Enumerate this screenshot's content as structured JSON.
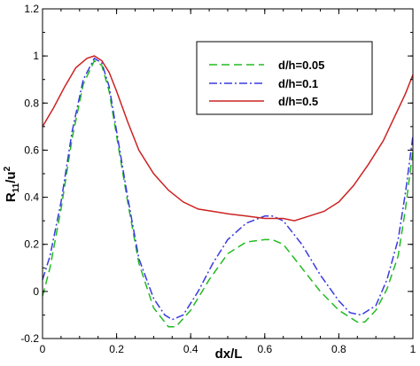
{
  "chart_data": {
    "type": "line",
    "title": "",
    "xlabel": "dx/L",
    "ylabel": "R11/u2",
    "ylabel_parts": {
      "base": "R",
      "sub": "11",
      "mid": "/u",
      "sup": "2"
    },
    "xlim": [
      0,
      1
    ],
    "ylim": [
      -0.2,
      1.2
    ],
    "xticks": [
      0,
      0.2,
      0.4,
      0.6,
      0.8,
      1
    ],
    "xtick_labels": [
      "0",
      "0.2",
      "0.4",
      "0.6",
      "0.8",
      "1"
    ],
    "yticks": [
      -0.2,
      0,
      0.2,
      0.4,
      0.6,
      0.8,
      1,
      1.2
    ],
    "ytick_labels": [
      "-0.2",
      "0",
      "0.2",
      "0.4",
      "0.6",
      "0.8",
      "1",
      "1.2"
    ],
    "grid": false,
    "legend_position": "top-right",
    "series": [
      {
        "name": "d/h=0.05",
        "color": "#22bb22",
        "dash": "dashed",
        "x": [
          0,
          0.02,
          0.05,
          0.08,
          0.11,
          0.14,
          0.16,
          0.18,
          0.2,
          0.23,
          0.26,
          0.3,
          0.34,
          0.36,
          0.4,
          0.45,
          0.5,
          0.55,
          0.6,
          0.62,
          0.65,
          0.7,
          0.75,
          0.8,
          0.85,
          0.87,
          0.9,
          0.93,
          0.96,
          0.98,
          1
        ],
        "y": [
          -0.02,
          0.1,
          0.35,
          0.65,
          0.88,
          0.98,
          0.96,
          0.85,
          0.66,
          0.38,
          0.12,
          -0.07,
          -0.15,
          -0.15,
          -0.08,
          0.05,
          0.16,
          0.21,
          0.22,
          0.22,
          0.2,
          0.1,
          0.0,
          -0.08,
          -0.13,
          -0.13,
          -0.08,
          0.01,
          0.15,
          0.35,
          0.6
        ]
      },
      {
        "name": "d/h=0.1",
        "color": "#3a3ae0",
        "dash": "dashdot",
        "x": [
          0,
          0.02,
          0.05,
          0.08,
          0.11,
          0.14,
          0.16,
          0.18,
          0.2,
          0.23,
          0.26,
          0.3,
          0.33,
          0.35,
          0.38,
          0.42,
          0.46,
          0.5,
          0.55,
          0.6,
          0.62,
          0.65,
          0.7,
          0.75,
          0.8,
          0.83,
          0.86,
          0.9,
          0.93,
          0.96,
          0.98,
          1
        ],
        "y": [
          0.05,
          0.15,
          0.38,
          0.68,
          0.9,
          0.99,
          0.97,
          0.87,
          0.68,
          0.4,
          0.14,
          -0.03,
          -0.1,
          -0.12,
          -0.1,
          0.0,
          0.12,
          0.22,
          0.29,
          0.32,
          0.32,
          0.3,
          0.2,
          0.07,
          -0.04,
          -0.09,
          -0.1,
          -0.06,
          0.05,
          0.22,
          0.42,
          0.66
        ]
      },
      {
        "name": "d/h=0.5",
        "color": "#cc2222",
        "dash": "solid",
        "x": [
          0,
          0.03,
          0.06,
          0.09,
          0.12,
          0.14,
          0.16,
          0.18,
          0.2,
          0.23,
          0.26,
          0.3,
          0.34,
          0.38,
          0.42,
          0.46,
          0.5,
          0.55,
          0.6,
          0.65,
          0.68,
          0.72,
          0.76,
          0.8,
          0.84,
          0.88,
          0.92,
          0.95,
          0.98,
          1
        ],
        "y": [
          0.7,
          0.78,
          0.87,
          0.95,
          0.99,
          1.0,
          0.98,
          0.93,
          0.85,
          0.72,
          0.6,
          0.5,
          0.43,
          0.38,
          0.35,
          0.34,
          0.33,
          0.32,
          0.31,
          0.31,
          0.3,
          0.32,
          0.34,
          0.38,
          0.45,
          0.54,
          0.64,
          0.74,
          0.84,
          0.92
        ]
      }
    ]
  }
}
